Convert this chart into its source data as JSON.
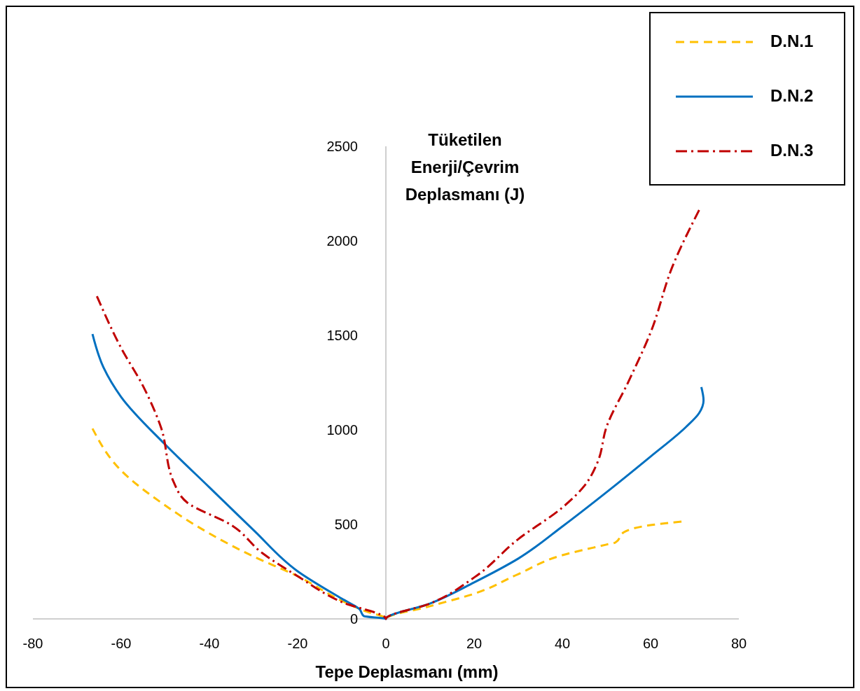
{
  "chart_data": {
    "type": "line",
    "xlabel": "Tepe Deplasmanı (mm)",
    "ylabel": "Tüketilen Enerji/Çevrim Deplasmanı (J)",
    "xlim": [
      -80,
      80
    ],
    "xticks": [
      -80,
      -60,
      -40,
      -20,
      0,
      20,
      40,
      60,
      80
    ],
    "ylim": [
      0,
      2500
    ],
    "yticks": [
      0,
      500,
      1000,
      1500,
      2000,
      2500
    ],
    "grid": false,
    "legend": "top right",
    "series": [
      {
        "name": "D.N.1",
        "color": "#ffc000",
        "line_style": "dashed",
        "x": [
          -66.5,
          -60,
          -50,
          -40,
          -30,
          -20,
          -10,
          -5,
          0,
          10,
          20,
          30,
          40,
          50,
          52,
          54,
          60,
          67
        ],
        "values": [
          1007,
          785,
          600,
          452,
          330,
          226,
          96,
          44,
          0,
          67,
          133,
          237,
          337,
          393,
          404,
          459,
          496,
          515
        ]
      },
      {
        "name": "D.N.2",
        "color": "#0070c0",
        "line_style": "solid",
        "x": [
          -66.5,
          -64,
          -60,
          -50,
          -40,
          -30,
          -20,
          -10,
          -6,
          -5,
          0,
          10,
          20,
          30,
          40,
          50,
          60,
          68,
          71,
          72,
          71.5
        ],
        "values": [
          1507,
          1330,
          1174,
          922,
          696,
          470,
          252,
          107,
          52,
          15,
          0,
          81,
          193,
          319,
          489,
          670,
          859,
          1015,
          1089,
          1156,
          1226
        ]
      },
      {
        "name": "D.N.3",
        "color": "#c00000",
        "line_style": "dashdot",
        "x": [
          -65.5,
          -60,
          -55,
          -51,
          -48,
          -45,
          -35,
          -28,
          -20,
          -10,
          0,
          10,
          20,
          30,
          40,
          45,
          48,
          50,
          55,
          60,
          65,
          71
        ],
        "values": [
          1707,
          1433,
          1230,
          1015,
          719,
          615,
          496,
          348,
          226,
          89,
          0,
          81,
          219,
          422,
          589,
          704,
          830,
          1015,
          1256,
          1515,
          1867,
          2163
        ]
      }
    ]
  }
}
